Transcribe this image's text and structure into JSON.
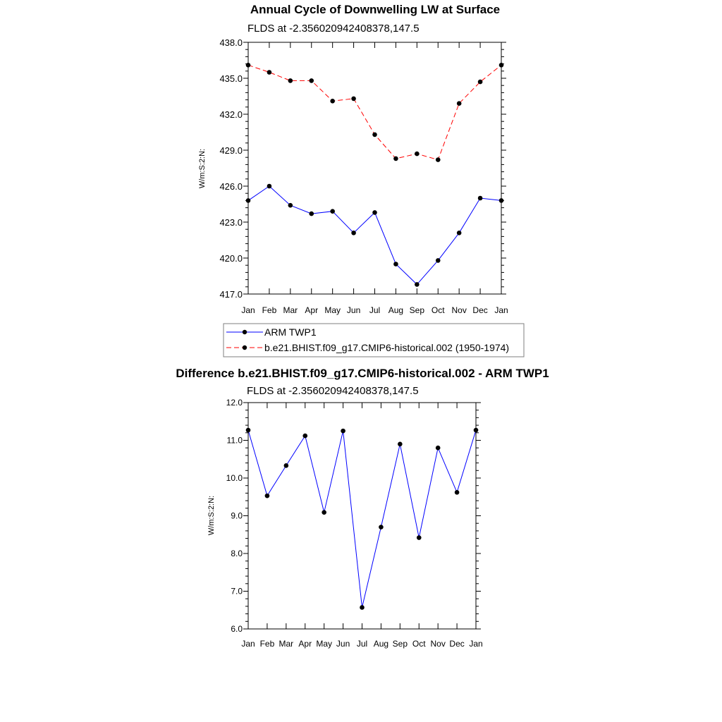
{
  "chart_data": [
    {
      "type": "line",
      "title": "Annual Cycle of Downwelling LW at Surface",
      "subtitle": "FLDS at -2.356020942408378,147.5",
      "ylabel": "W/m:S:2:N:",
      "ylim": [
        417.0,
        438.0
      ],
      "yticks": [
        "417.0",
        "420.0",
        "423.0",
        "426.0",
        "429.0",
        "432.0",
        "435.0",
        "438.0"
      ],
      "categories": [
        "Jan",
        "Feb",
        "Mar",
        "Apr",
        "May",
        "Jun",
        "Jul",
        "Aug",
        "Sep",
        "Oct",
        "Nov",
        "Dec",
        "Jan"
      ],
      "series": [
        {
          "name": "ARM TWP1",
          "color": "#0000ff",
          "dash": "solid",
          "values": [
            424.8,
            426.0,
            424.4,
            423.7,
            423.9,
            422.1,
            423.8,
            419.5,
            417.8,
            419.8,
            422.1,
            425.0,
            424.8
          ]
        },
        {
          "name": "b.e21.BHIST.f09_g17.CMIP6-historical.002 (1950-1974)",
          "color": "#ff0000",
          "dash": "dashed",
          "values": [
            436.1,
            435.5,
            434.8,
            434.8,
            433.1,
            433.3,
            430.3,
            428.3,
            428.7,
            428.2,
            432.9,
            434.7,
            436.1
          ]
        }
      ],
      "legend_position": "bottom",
      "grid": false
    },
    {
      "type": "line",
      "title": "Difference b.e21.BHIST.f09_g17.CMIP6-historical.002 - ARM TWP1",
      "subtitle": "FLDS at -2.356020942408378,147.5",
      "ylabel": "W/m:S:2:N:",
      "ylim": [
        6.0,
        12.0
      ],
      "yticks": [
        "6.0",
        "7.0",
        "8.0",
        "9.0",
        "10.0",
        "11.0",
        "12.0"
      ],
      "categories": [
        "Jan",
        "Feb",
        "Mar",
        "Apr",
        "May",
        "Jun",
        "Jul",
        "Aug",
        "Sep",
        "Oct",
        "Nov",
        "Dec",
        "Jan"
      ],
      "series": [
        {
          "color": "#0000ff",
          "values": [
            11.27,
            9.53,
            10.33,
            11.12,
            9.09,
            11.25,
            6.57,
            8.7,
            10.9,
            8.42,
            10.8,
            9.62,
            11.27
          ]
        }
      ],
      "grid": false
    }
  ]
}
